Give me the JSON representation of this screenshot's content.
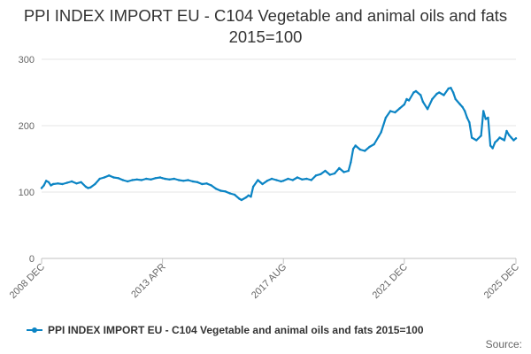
{
  "chart_data": {
    "type": "line",
    "title": "PPI INDEX IMPORT EU - C104 Vegetable and animal oils and fats 2015=100",
    "xlabel": "",
    "ylabel": "",
    "ylim": [
      0,
      300
    ],
    "yticks": [
      0,
      100,
      200,
      300
    ],
    "xlim": [
      2008.917,
      2025.917
    ],
    "xticks": [
      {
        "label": "2008 DEC",
        "x": 2008.917
      },
      {
        "label": "2013 APR",
        "x": 2013.25
      },
      {
        "label": "2017 AUG",
        "x": 2017.583
      },
      {
        "label": "2021 DEC",
        "x": 2021.917
      },
      {
        "label": "2025 DEC",
        "x": 2025.917
      }
    ],
    "grid": true,
    "legend_position": "bottom",
    "color": "#0b84c4",
    "series": [
      {
        "name": "PPI INDEX IMPORT EU - C104 Vegetable and animal oils and fats 2015=100",
        "x": [
          2008.917,
          2009.0,
          2009.083,
          2009.167,
          2009.25,
          2009.333,
          2009.5,
          2009.667,
          2009.833,
          2010.0,
          2010.167,
          2010.333,
          2010.5,
          2010.583,
          2010.667,
          2010.833,
          2011.0,
          2011.167,
          2011.333,
          2011.5,
          2011.667,
          2011.833,
          2012.0,
          2012.167,
          2012.333,
          2012.5,
          2012.667,
          2012.833,
          2013.0,
          2013.167,
          2013.25,
          2013.333,
          2013.5,
          2013.667,
          2013.833,
          2014.0,
          2014.167,
          2014.333,
          2014.5,
          2014.667,
          2014.833,
          2015.0,
          2015.167,
          2015.333,
          2015.5,
          2015.667,
          2015.833,
          2016.0,
          2016.083,
          2016.25,
          2016.333,
          2016.417,
          2016.5,
          2016.667,
          2016.833,
          2017.0,
          2017.167,
          2017.333,
          2017.5,
          2017.583,
          2017.75,
          2017.917,
          2018.083,
          2018.25,
          2018.417,
          2018.583,
          2018.75,
          2018.917,
          2019.083,
          2019.25,
          2019.417,
          2019.583,
          2019.75,
          2019.917,
          2020.0,
          2020.083,
          2020.167,
          2020.333,
          2020.5,
          2020.667,
          2020.833,
          2021.0,
          2021.083,
          2021.25,
          2021.417,
          2021.583,
          2021.75,
          2021.917,
          2022.0,
          2022.083,
          2022.25,
          2022.333,
          2022.5,
          2022.583,
          2022.75,
          2022.917,
          2023.083,
          2023.167,
          2023.333,
          2023.5,
          2023.583,
          2023.667,
          2023.75,
          2023.917,
          2024.0,
          2024.083,
          2024.167,
          2024.25,
          2024.333,
          2024.5,
          2024.667,
          2024.75,
          2024.833,
          2024.917,
          2025.0,
          2025.083,
          2025.167,
          2025.25,
          2025.333,
          2025.417,
          2025.5,
          2025.583,
          2025.667,
          2025.75,
          2025.833,
          2025.917
        ],
        "values": [
          106,
          110,
          117,
          115,
          110,
          112,
          113,
          112,
          114,
          116,
          113,
          115,
          108,
          106,
          107,
          112,
          120,
          122,
          125,
          122,
          121,
          118,
          116,
          118,
          119,
          118,
          120,
          119,
          121,
          122,
          121,
          120,
          119,
          120,
          118,
          117,
          118,
          116,
          115,
          112,
          113,
          110,
          105,
          102,
          101,
          98,
          96,
          90,
          88,
          92,
          95,
          93,
          108,
          118,
          112,
          117,
          120,
          118,
          116,
          117,
          120,
          118,
          122,
          119,
          120,
          118,
          125,
          127,
          132,
          126,
          128,
          136,
          130,
          132,
          145,
          165,
          170,
          164,
          162,
          168,
          172,
          184,
          190,
          212,
          222,
          220,
          226,
          232,
          240,
          238,
          250,
          252,
          246,
          236,
          225,
          240,
          248,
          250,
          246,
          256,
          257,
          250,
          240,
          232,
          228,
          222,
          212,
          205,
          182,
          178,
          185,
          222,
          210,
          212,
          170,
          166,
          175,
          178,
          182,
          180,
          178,
          192,
          186,
          182,
          178,
          181
        ]
      }
    ]
  },
  "legend": {
    "label": "PPI INDEX IMPORT EU - C104 Vegetable and animal oils and fats 2015=100"
  },
  "footer": {
    "source": "Source:"
  }
}
